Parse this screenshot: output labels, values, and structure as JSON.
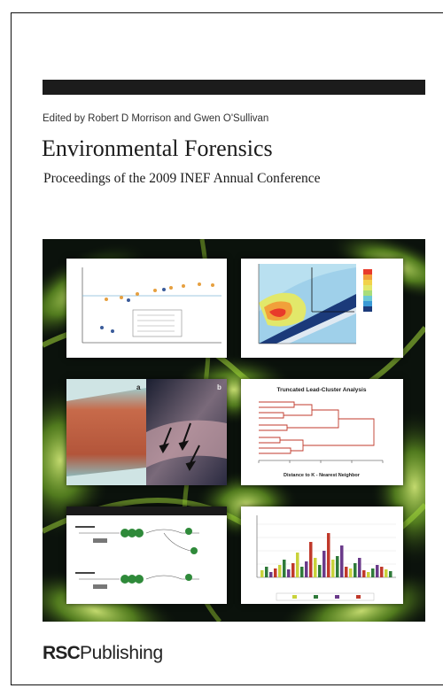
{
  "book": {
    "editors": "Edited by Robert D Morrison and Gwen O'Sullivan",
    "title": "Environmental Forensics",
    "subtitle": "Proceedings of the 2009 INEF Annual Conference",
    "publisher_bold": "RSC",
    "publisher_rest": "Publishing"
  },
  "colors": {
    "background_art": "#0b120c",
    "glow_green": "#8fcf3a",
    "bar": "#1c1c1c"
  },
  "figures": {
    "dendrogram_title": "Truncated Lead-Cluster Analysis",
    "dendrogram_xlabel": "Distance to K - Nearest Neighbor",
    "photo_label_a": "a",
    "photo_label_b": "b"
  }
}
